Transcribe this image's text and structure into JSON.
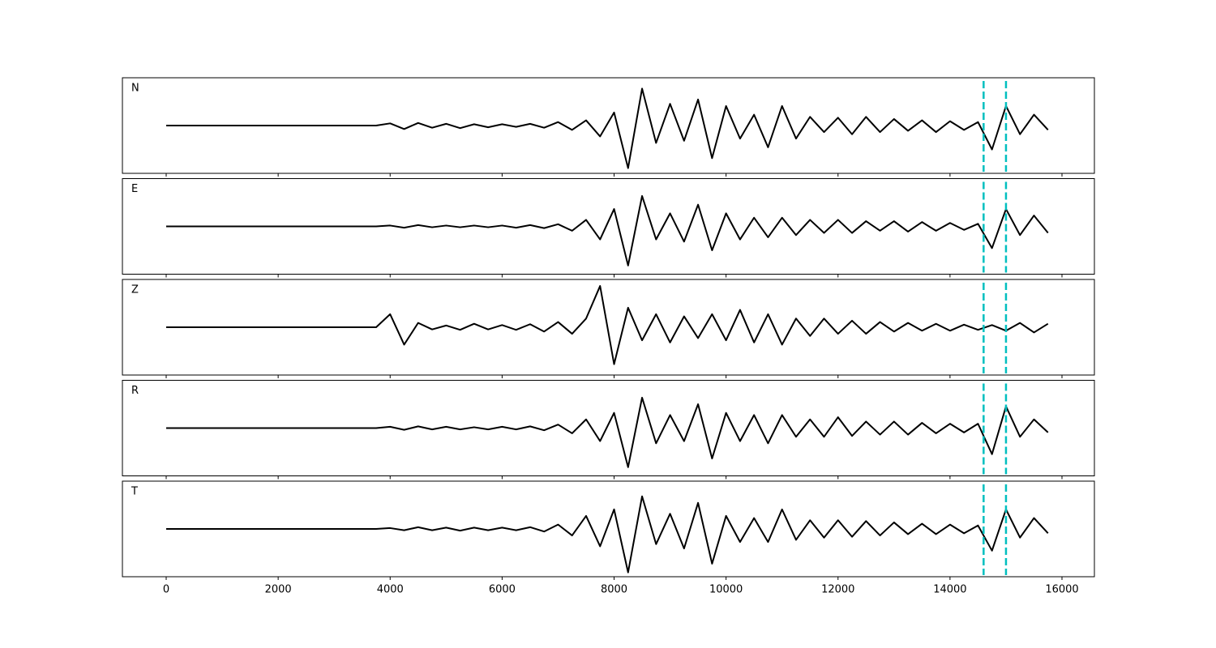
{
  "chart_data": {
    "type": "line",
    "x": [
      0,
      250,
      500,
      750,
      1000,
      1250,
      1500,
      1750,
      2000,
      2250,
      2500,
      2750,
      3000,
      3250,
      3500,
      3750,
      4000,
      4250,
      4500,
      4750,
      5000,
      5250,
      5500,
      5750,
      6000,
      6250,
      6500,
      6750,
      7000,
      7250,
      7500,
      7750,
      8000,
      8250,
      8500,
      8750,
      9000,
      9250,
      9500,
      9750,
      10000,
      10250,
      10500,
      10750,
      11000,
      11250,
      11500,
      11750,
      12000,
      12250,
      12500,
      12750,
      13000,
      13250,
      13500,
      13750,
      14000,
      14250,
      14500,
      14750,
      15000,
      15250,
      15500,
      15750
    ],
    "xlim": [
      -782,
      16579
    ],
    "xticks": [
      0,
      2000,
      4000,
      6000,
      8000,
      10000,
      12000,
      14000,
      16000
    ],
    "ylim": [
      -1.1,
      1.1
    ],
    "vlines": {
      "values": [
        14600,
        15000
      ],
      "color": "#00bfbf",
      "style": "dashed"
    },
    "series": [
      {
        "name": "N",
        "color": "#000000",
        "values": [
          0,
          0,
          0,
          0,
          0,
          0,
          0,
          0,
          0,
          0,
          0,
          0,
          0,
          0,
          0,
          0,
          0.05,
          -0.08,
          0.06,
          -0.05,
          0.04,
          -0.06,
          0.03,
          -0.04,
          0.03,
          -0.03,
          0.04,
          -0.05,
          0.08,
          -0.1,
          0.12,
          -0.25,
          0.3,
          -0.98,
          0.85,
          -0.4,
          0.5,
          -0.35,
          0.6,
          -0.75,
          0.45,
          -0.3,
          0.25,
          -0.5,
          0.45,
          -0.3,
          0.2,
          -0.15,
          0.18,
          -0.2,
          0.2,
          -0.15,
          0.15,
          -0.12,
          0.12,
          -0.15,
          0.1,
          -0.1,
          0.08,
          -0.55,
          0.45,
          -0.2,
          0.25,
          -0.1
        ]
      },
      {
        "name": "E",
        "color": "#000000",
        "values": [
          0,
          0,
          0,
          0,
          0,
          0,
          0,
          0,
          0,
          0,
          0,
          0,
          0,
          0,
          0,
          0,
          0.02,
          -0.03,
          0.03,
          -0.02,
          0.02,
          -0.02,
          0.02,
          -0.02,
          0.02,
          -0.03,
          0.03,
          -0.04,
          0.05,
          -0.1,
          0.15,
          -0.3,
          0.4,
          -0.9,
          0.7,
          -0.3,
          0.3,
          -0.35,
          0.5,
          -0.55,
          0.3,
          -0.3,
          0.2,
          -0.25,
          0.2,
          -0.2,
          0.15,
          -0.15,
          0.15,
          -0.15,
          0.12,
          -0.1,
          0.12,
          -0.12,
          0.1,
          -0.1,
          0.08,
          -0.08,
          0.06,
          -0.5,
          0.4,
          -0.2,
          0.25,
          -0.15
        ]
      },
      {
        "name": "Z",
        "color": "#000000",
        "values": [
          0,
          0,
          0,
          0,
          0,
          0,
          0,
          0,
          0,
          0,
          0,
          0,
          0,
          0,
          0,
          0,
          0.3,
          -0.4,
          0.1,
          -0.05,
          0.04,
          -0.06,
          0.08,
          -0.05,
          0.05,
          -0.06,
          0.07,
          -0.1,
          0.12,
          -0.15,
          0.2,
          0.95,
          -0.85,
          0.45,
          -0.3,
          0.3,
          -0.35,
          0.25,
          -0.25,
          0.3,
          -0.3,
          0.4,
          -0.35,
          0.3,
          -0.4,
          0.2,
          -0.2,
          0.2,
          -0.15,
          0.15,
          -0.15,
          0.12,
          -0.1,
          0.1,
          -0.08,
          0.08,
          -0.08,
          0.06,
          -0.06,
          0.05,
          -0.08,
          0.1,
          -0.12,
          0.08
        ]
      },
      {
        "name": "R",
        "color": "#000000",
        "values": [
          0,
          0,
          0,
          0,
          0,
          0,
          0,
          0,
          0,
          0,
          0,
          0,
          0,
          0,
          0,
          0,
          0.03,
          -0.04,
          0.04,
          -0.03,
          0.03,
          -0.03,
          0.02,
          -0.03,
          0.03,
          -0.03,
          0.04,
          -0.05,
          0.08,
          -0.12,
          0.2,
          -0.3,
          0.35,
          -0.9,
          0.7,
          -0.35,
          0.3,
          -0.3,
          0.55,
          -0.7,
          0.35,
          -0.3,
          0.3,
          -0.35,
          0.3,
          -0.2,
          0.2,
          -0.2,
          0.25,
          -0.18,
          0.15,
          -0.15,
          0.15,
          -0.15,
          0.12,
          -0.12,
          0.1,
          -0.1,
          0.1,
          -0.6,
          0.5,
          -0.2,
          0.2,
          -0.1
        ]
      },
      {
        "name": "T",
        "color": "#000000",
        "values": [
          0,
          0,
          0,
          0,
          0,
          0,
          0,
          0,
          0,
          0,
          0,
          0,
          0,
          0,
          0,
          0,
          0.02,
          -0.03,
          0.04,
          -0.03,
          0.03,
          -0.04,
          0.03,
          -0.03,
          0.03,
          -0.03,
          0.04,
          -0.06,
          0.1,
          -0.15,
          0.3,
          -0.4,
          0.45,
          -1.0,
          0.75,
          -0.35,
          0.35,
          -0.45,
          0.6,
          -0.8,
          0.3,
          -0.3,
          0.25,
          -0.3,
          0.45,
          -0.25,
          0.2,
          -0.2,
          0.2,
          -0.18,
          0.18,
          -0.15,
          0.15,
          -0.12,
          0.12,
          -0.12,
          0.1,
          -0.1,
          0.08,
          -0.5,
          0.45,
          -0.2,
          0.25,
          -0.1
        ]
      }
    ]
  }
}
